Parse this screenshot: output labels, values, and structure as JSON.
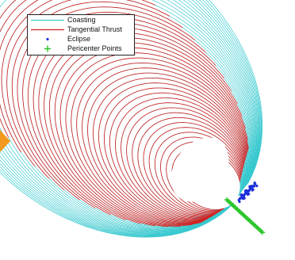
{
  "legend": {
    "items": [
      {
        "label": "Coasting",
        "color": "#39c9cf",
        "marker": "line"
      },
      {
        "label": "Tangential Thrust",
        "color": "#d61e1e",
        "marker": "line"
      },
      {
        "label": "Eclipse",
        "color": "#1c2fd8",
        "marker": "dot"
      },
      {
        "label": "Pericenter Points",
        "color": "#26c426",
        "marker": "plus"
      }
    ]
  },
  "colors": {
    "coasting": "#39c9cf",
    "thrust": "#d61e1e",
    "eclipse": "#1c2fd8",
    "pericenter": "#26c426",
    "accent_tab": "#f39a1e"
  }
}
